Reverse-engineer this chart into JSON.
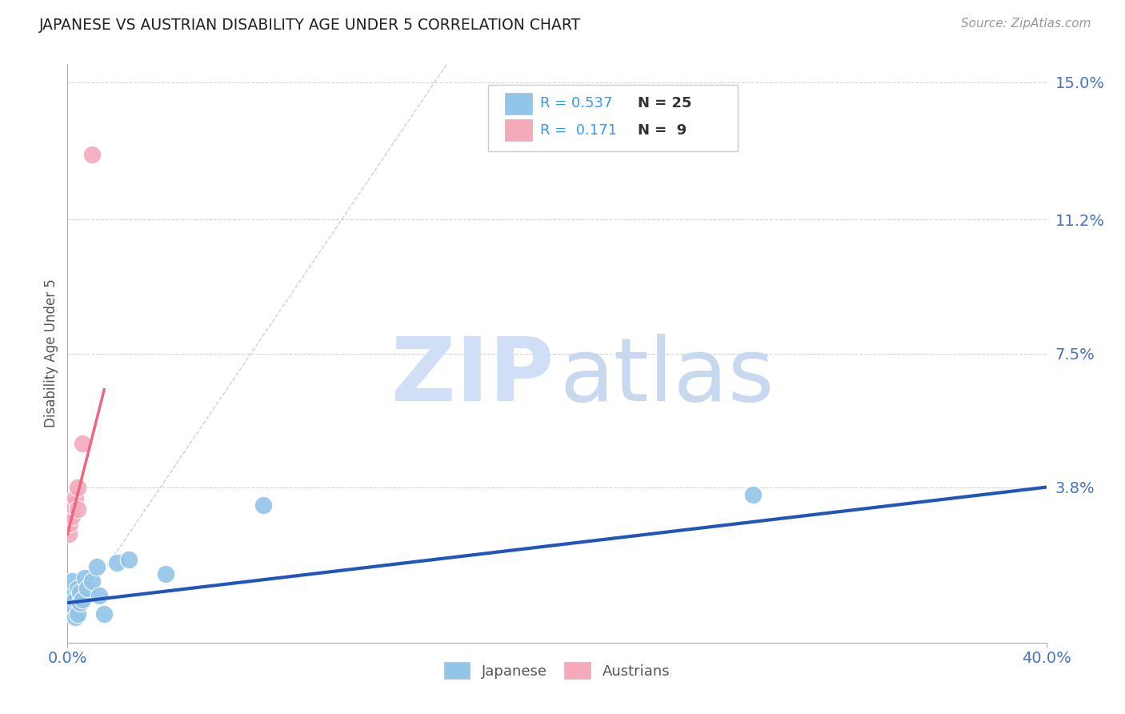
{
  "title": "JAPANESE VS AUSTRIAN DISABILITY AGE UNDER 5 CORRELATION CHART",
  "source": "Source: ZipAtlas.com",
  "ylabel": "Disability Age Under 5",
  "xlim": [
    0.0,
    0.4
  ],
  "ylim": [
    -0.005,
    0.155
  ],
  "yticks": [
    0.038,
    0.075,
    0.112,
    0.15
  ],
  "ytick_labels": [
    "3.8%",
    "7.5%",
    "11.2%",
    "15.0%"
  ],
  "xtick_labels": [
    "0.0%",
    "40.0%"
  ],
  "xticks": [
    0.0,
    0.4
  ],
  "R_japanese": 0.537,
  "N_japanese": 25,
  "R_austrian": 0.171,
  "N_austrian": 9,
  "color_japanese": "#92C5E8",
  "color_austrian": "#F5AABC",
  "color_trend_japanese": "#2255BB",
  "color_trend_austrian": "#EE6680",
  "color_axis_labels": "#4472C4",
  "color_title": "#222222",
  "color_source": "#999999",
  "color_gridline": "#C8C8C8",
  "color_refline": "#CCCCCC",
  "legend_R_color": "#3399FF",
  "legend_N_color": "#333333",
  "jp_trend_x0": 0.0,
  "jp_trend_y0": 0.006,
  "jp_trend_x1": 0.4,
  "jp_trend_y1": 0.038,
  "au_trend_x0": 0.0,
  "au_trend_y0": 0.025,
  "au_trend_x1": 0.015,
  "au_trend_y1": 0.065,
  "ref_line_x0": 0.0,
  "ref_line_y0": 0.0,
  "ref_line_x1": 0.155,
  "ref_line_y1": 0.155,
  "japanese_x": [
    0.0005,
    0.001,
    0.001,
    0.0015,
    0.002,
    0.002,
    0.002,
    0.003,
    0.003,
    0.004,
    0.004,
    0.005,
    0.005,
    0.006,
    0.007,
    0.008,
    0.01,
    0.012,
    0.013,
    0.015,
    0.02,
    0.025,
    0.04,
    0.08,
    0.28
  ],
  "japanese_y": [
    0.008,
    0.005,
    0.01,
    0.006,
    0.004,
    0.008,
    0.012,
    0.002,
    0.007,
    0.003,
    0.01,
    0.006,
    0.009,
    0.007,
    0.013,
    0.01,
    0.012,
    0.016,
    0.008,
    0.003,
    0.017,
    0.018,
    0.014,
    0.033,
    0.036
  ],
  "austrian_x": [
    0.0005,
    0.001,
    0.002,
    0.002,
    0.003,
    0.004,
    0.004,
    0.006,
    0.01
  ],
  "austrian_y": [
    0.025,
    0.028,
    0.03,
    0.033,
    0.035,
    0.032,
    0.038,
    0.05,
    0.13
  ]
}
